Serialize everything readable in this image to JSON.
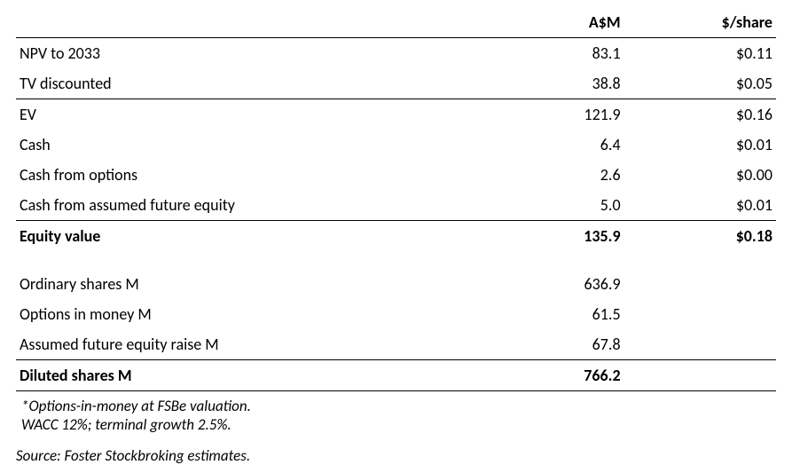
{
  "table": {
    "headers": {
      "label": "",
      "col1": "A$M",
      "col2": "$/share"
    },
    "section1": [
      {
        "label": "NPV to 2033",
        "c1": "83.1",
        "c2": "$0.11"
      },
      {
        "label": "TV discounted",
        "c1": "38.8",
        "c2": "$0.05"
      }
    ],
    "section2": [
      {
        "label": "EV",
        "c1": "121.9",
        "c2": "$0.16"
      },
      {
        "label": "Cash",
        "c1": "6.4",
        "c2": "$0.01"
      },
      {
        "label": "Cash from options",
        "c1": "2.6",
        "c2": "$0.00"
      },
      {
        "label": "Cash from assumed future equity",
        "c1": "5.0",
        "c2": "$0.01"
      }
    ],
    "equity_value": {
      "label": "Equity value",
      "c1": "135.9",
      "c2": "$0.18"
    },
    "section3": [
      {
        "label": "Ordinary shares M",
        "c1": "636.9",
        "c2": ""
      },
      {
        "label": "Options in money M",
        "c1": "61.5",
        "c2": ""
      },
      {
        "label": "Assumed future equity raise M",
        "c1": "67.8",
        "c2": ""
      }
    ],
    "diluted": {
      "label": "Diluted shares M",
      "c1": "766.2",
      "c2": ""
    }
  },
  "footnotes": {
    "line1": "*Options-in-money at FSBe valuation.",
    "line2": "WACC 12%; terminal growth 2.5%."
  },
  "source": "Source: Foster Stockbroking estimates.",
  "style": {
    "font_family": "Calibri, Segoe UI, Arial, sans-serif",
    "font_size_body": 18,
    "font_size_notes": 17,
    "text_color": "#000000",
    "background_color": "#ffffff",
    "border_color": "#000000"
  }
}
